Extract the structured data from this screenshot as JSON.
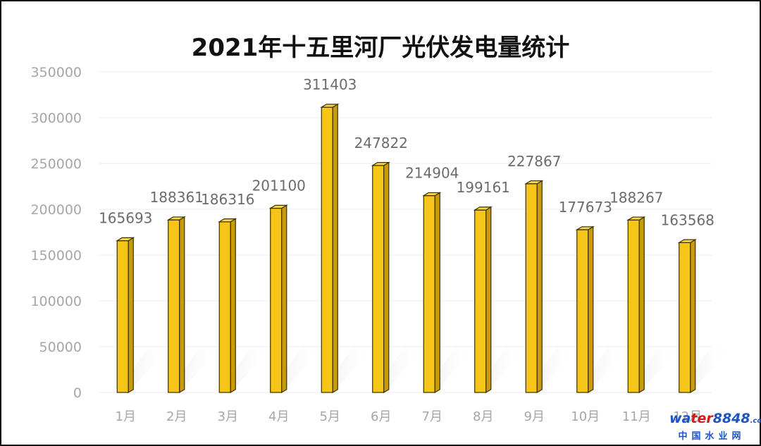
{
  "chart_data": {
    "type": "bar",
    "title": "2021年十五里河厂光伏发电量统计",
    "categories": [
      "1月",
      "2月",
      "3月",
      "4月",
      "5月",
      "6月",
      "7月",
      "8月",
      "9月",
      "10月",
      "11月",
      "12月"
    ],
    "values": [
      165693,
      188361,
      186316,
      201100,
      311403,
      247822,
      214904,
      199161,
      227867,
      177673,
      188267,
      163568
    ],
    "y_ticks": [
      "0",
      "50000",
      "100000",
      "150000",
      "200000",
      "250000",
      "300000",
      "350000"
    ],
    "ylim": [
      0,
      350000
    ],
    "xlabel": "",
    "ylabel": "",
    "grid": true,
    "bar_color": "#f5c518",
    "label_color": "#6b6b6b",
    "tick_color": "#a6a6a6"
  },
  "watermark": {
    "brand_part1": "wa",
    "brand_part2": "ter",
    "brand_part3": "8848",
    "brand_part4": ".com",
    "subtitle": "中国水业网"
  }
}
